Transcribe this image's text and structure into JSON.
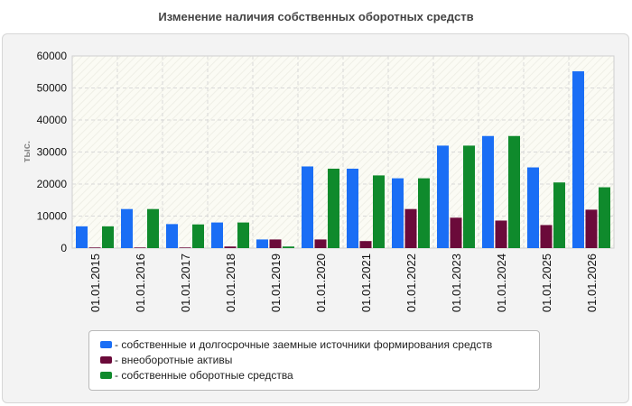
{
  "chart_data": {
    "type": "bar",
    "title": "Изменение наличия собственных оборотных средств",
    "ylabel": "тыс.",
    "xlabel": "",
    "ylim": [
      0,
      60000
    ],
    "yticks": [
      0,
      10000,
      20000,
      30000,
      40000,
      50000,
      60000
    ],
    "grid": true,
    "legend_position": "bottom",
    "categories": [
      "01.01.2015",
      "01.01.2016",
      "01.01.2017",
      "01.01.2018",
      "01.01.2019",
      "01.01.2020",
      "01.01.2021",
      "01.01.2022",
      "01.01.2023",
      "01.01.2024",
      "01.01.2025",
      "01.01.2026"
    ],
    "series": [
      {
        "name": "- собственные и долгосрочные заемные источники формирования средств",
        "color": "#1a6ef5",
        "values": [
          6800,
          12200,
          7500,
          8000,
          2700,
          25500,
          24800,
          21800,
          32000,
          35000,
          25200,
          55200
        ]
      },
      {
        "name": "- внеоборотные активы",
        "color": "#6b0a3a",
        "values": [
          200,
          200,
          200,
          500,
          2700,
          2700,
          2200,
          12200,
          9500,
          8600,
          7200,
          12000
        ]
      },
      {
        "name": "- собственные оборотные средства",
        "color": "#0f8a2c",
        "values": [
          6800,
          12200,
          7400,
          8000,
          500,
          24800,
          22700,
          21800,
          32000,
          35000,
          20500,
          19000
        ]
      }
    ]
  }
}
